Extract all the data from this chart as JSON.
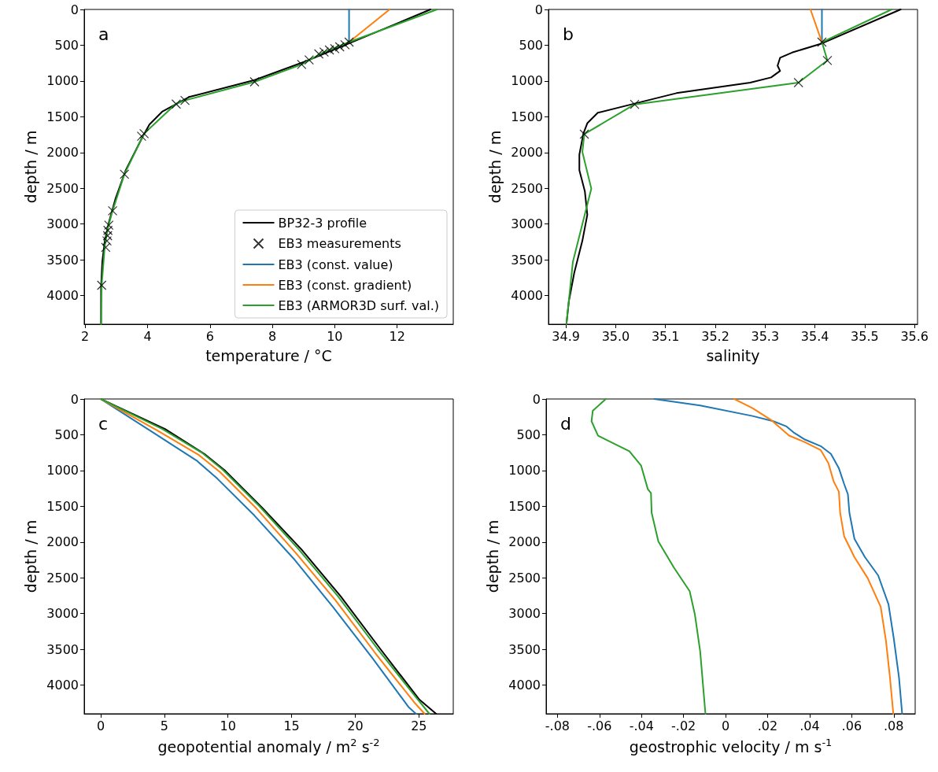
{
  "chart_data": [
    {
      "type": "line",
      "xlabel": "temperature / °C",
      "ylabel": "depth / m",
      "annotations": [
        "a"
      ],
      "legend": "bottom right",
      "xlim": [
        1.97,
        13.8
      ],
      "xticks": [
        2,
        4,
        6,
        8,
        10,
        12
      ],
      "ylim": [
        4400,
        0
      ],
      "yticks": [
        0,
        500,
        1000,
        1500,
        2000,
        2500,
        3000,
        3500,
        4000
      ],
      "series": [
        {
          "name": "BP32-3 profile",
          "color": "#000000",
          "x": [
            13.07,
            10.46,
            9.03,
            7.43,
            5.33,
            4.48,
            4.06,
            3.85,
            3.64,
            3.3,
            2.97,
            2.76,
            2.63,
            2.55,
            2.51,
            2.51
          ],
          "values": [
            0,
            475,
            731,
            987,
            1224,
            1425,
            1608,
            1773,
            1955,
            2248,
            2650,
            2979,
            3235,
            3527,
            3893,
            4400
          ]
        },
        {
          "name": "EB3 measurements",
          "type": "scatter",
          "marker": "cross",
          "color": "#000000",
          "x": [
            10.46,
            10.33,
            10.16,
            10.0,
            9.83,
            9.66,
            9.49,
            9.18,
            8.94,
            7.43,
            5.2,
            4.92,
            3.89,
            3.81,
            3.26,
            2.88,
            2.76,
            2.73,
            2.72,
            2.7,
            2.66,
            2.53
          ],
          "values": [
            457,
            493,
            523,
            548,
            567,
            596,
            621,
            705,
            768,
            1012,
            1272,
            1323,
            1736,
            1773,
            2303,
            2814,
            3015,
            3088,
            3162,
            3235,
            3326,
            3856
          ]
        },
        {
          "name": "EB3 (const. value)",
          "color": "#1f77b4",
          "x": [
            10.46,
            10.46
          ],
          "values": [
            0,
            457
          ]
        },
        {
          "name": "EB3 (const. gradient)",
          "color": "#ff7f0e",
          "x": [
            11.76,
            10.46
          ],
          "values": [
            0,
            457
          ]
        },
        {
          "name": "EB3 (ARMOR3D surf. val.)",
          "color": "#2ca02c",
          "x": [
            13.28,
            10.46,
            9.62,
            8.94,
            7.43,
            5.2,
            4.9,
            3.89,
            3.26,
            2.88,
            2.73,
            2.63,
            2.53,
            2.51
          ],
          "values": [
            0,
            457,
            603,
            768,
            1012,
            1272,
            1323,
            1736,
            2303,
            2814,
            3052,
            3308,
            3856,
            4400
          ]
        }
      ]
    },
    {
      "type": "line",
      "xlabel": "salinity",
      "ylabel": "depth / m",
      "annotations": [
        "b"
      ],
      "xlim": [
        34.865,
        35.606
      ],
      "xticks": [
        34.9,
        {
          "value": 35,
          "label": "35.0"
        },
        35.1,
        35.2,
        35.3,
        35.4,
        35.5,
        35.6
      ],
      "ylim": [
        4400,
        0
      ],
      "yticks": [
        0,
        500,
        1000,
        1500,
        2000,
        2500,
        3000,
        3500,
        4000
      ],
      "series": [
        {
          "color": "#000000",
          "x": [
            35.572,
            35.414,
            35.354,
            35.33,
            35.325,
            35.33,
            35.312,
            35.27,
            35.122,
            35.038,
            34.964,
            34.943,
            34.935,
            34.927,
            34.927,
            34.938,
            34.943,
            34.933,
            34.917,
            34.906,
            34.901
          ],
          "values": [
            0,
            475,
            603,
            676,
            786,
            859,
            950,
            1023,
            1170,
            1316,
            1444,
            1590,
            1736,
            2029,
            2248,
            2540,
            2869,
            3235,
            3673,
            4075,
            4400
          ]
        },
        {
          "type": "scatter",
          "marker": "cross",
          "color": "#000000",
          "x": [
            35.414,
            35.425,
            35.367,
            35.038,
            34.937
          ],
          "values": [
            457,
            713,
            1023,
            1327,
            1743
          ]
        },
        {
          "color": "#1f77b4",
          "x": [
            35.414,
            35.414
          ],
          "values": [
            0,
            457
          ]
        },
        {
          "color": "#ff7f0e",
          "x": [
            35.391,
            35.414
          ],
          "values": [
            0,
            457
          ]
        },
        {
          "color": "#2ca02c",
          "x": [
            35.554,
            35.414,
            35.425,
            35.367,
            35.038,
            34.937,
            34.933,
            34.951,
            34.914,
            34.901
          ],
          "values": [
            0,
            457,
            713,
            1023,
            1327,
            1743,
            1992,
            2504,
            3527,
            4400
          ]
        }
      ]
    },
    {
      "type": "line",
      "xlabel": "geopotential anomaly / m$^{2}$ s$^{-2}$",
      "ylabel": "depth / m",
      "annotations": [
        "c"
      ],
      "xlim": [
        -1.3,
        27.7
      ],
      "xticks": [
        0,
        5,
        10,
        15,
        20,
        25
      ],
      "ylim": [
        4400,
        0
      ],
      "yticks": [
        0,
        500,
        1000,
        1500,
        2000,
        2500,
        3000,
        3500,
        4000
      ],
      "series": [
        {
          "color": "#000000",
          "x": [
            0,
            5.05,
            8.14,
            9.79,
            12.67,
            15.77,
            18.86,
            21.95,
            25.04,
            26.35
          ],
          "values": [
            0,
            420,
            768,
            1005,
            1517,
            2102,
            2760,
            3490,
            4203,
            4400
          ]
        },
        {
          "color": "#1f77b4",
          "x": [
            0,
            4.02,
            7.52,
            9.17,
            12.06,
            15.15,
            18.24,
            21.33,
            24.22,
            24.77
          ],
          "values": [
            0,
            457,
            859,
            1115,
            1626,
            2230,
            2906,
            3618,
            4313,
            4400
          ]
        },
        {
          "color": "#ff7f0e",
          "x": [
            0,
            4.43,
            7.73,
            9.38,
            12.26,
            15.35,
            18.45,
            21.54,
            24.63,
            25.45
          ],
          "values": [
            0,
            439,
            786,
            1023,
            1535,
            2157,
            2814,
            3545,
            4240,
            4400
          ]
        },
        {
          "color": "#2ca02c",
          "x": [
            0,
            4.84,
            7.93,
            9.58,
            12.47,
            15.56,
            18.65,
            21.74,
            24.84,
            25.82
          ],
          "values": [
            0,
            420,
            749,
            987,
            1499,
            2102,
            2760,
            3490,
            4185,
            4400
          ]
        }
      ]
    },
    {
      "type": "line",
      "xlabel": "geostrophic velocity / m s$^{-1}$",
      "ylabel": "depth / m",
      "annotations": [
        "d"
      ],
      "xlim": [
        -0.0854,
        0.0902
      ],
      "xticks": [
        {
          "value": -0.08,
          "label": "-.08"
        },
        {
          "value": -0.06,
          "label": "-.06"
        },
        {
          "value": -0.04,
          "label": "-.04"
        },
        {
          "value": -0.02,
          "label": "-.02"
        },
        0,
        {
          "value": 0.02,
          "label": ".02"
        },
        {
          "value": 0.04,
          "label": ".04"
        },
        {
          "value": 0.06,
          "label": ".06"
        },
        {
          "value": 0.08,
          "label": ".08"
        }
      ],
      "ylim": [
        4400,
        0
      ],
      "yticks": [
        0,
        500,
        1000,
        1500,
        2000,
        2500,
        3000,
        3500,
        4000
      ],
      "series": [
        {
          "color": "#1f77b4",
          "x": [
            -0.0339,
            -0.0121,
            0.0128,
            0.0227,
            0.029,
            0.0327,
            0.0377,
            0.0452,
            0.0501,
            0.0539,
            0.0564,
            0.0582,
            0.0589,
            0.0613,
            0.0663,
            0.0726,
            0.0775,
            0.08,
            0.0825,
            0.084
          ],
          "values": [
            0,
            91,
            238,
            311,
            384,
            475,
            567,
            658,
            768,
            969,
            1188,
            1334,
            1590,
            1955,
            2211,
            2467,
            2869,
            3344,
            3893,
            4400
          ]
        },
        {
          "color": "#ff7f0e",
          "x": [
            0.0041,
            0.0128,
            0.0216,
            0.0302,
            0.0377,
            0.0452,
            0.0489,
            0.0514,
            0.0539,
            0.0545,
            0.0564,
            0.0613,
            0.0676,
            0.0738,
            0.0763,
            0.0782,
            0.0798
          ],
          "values": [
            0,
            128,
            292,
            512,
            603,
            713,
            896,
            1151,
            1297,
            1590,
            1919,
            2211,
            2504,
            2906,
            3381,
            3893,
            4400
          ]
        },
        {
          "color": "#2ca02c",
          "x": [
            -0.057,
            -0.0632,
            -0.0638,
            -0.0607,
            -0.0545,
            -0.0458,
            -0.0402,
            -0.037,
            -0.0355,
            -0.0352,
            -0.032,
            -0.0246,
            -0.0171,
            -0.0146,
            -0.0121,
            -0.0096
          ],
          "values": [
            0,
            164,
            311,
            512,
            603,
            731,
            932,
            1261,
            1316,
            1590,
            1992,
            2357,
            2686,
            3015,
            3527,
            4400
          ]
        }
      ]
    }
  ]
}
